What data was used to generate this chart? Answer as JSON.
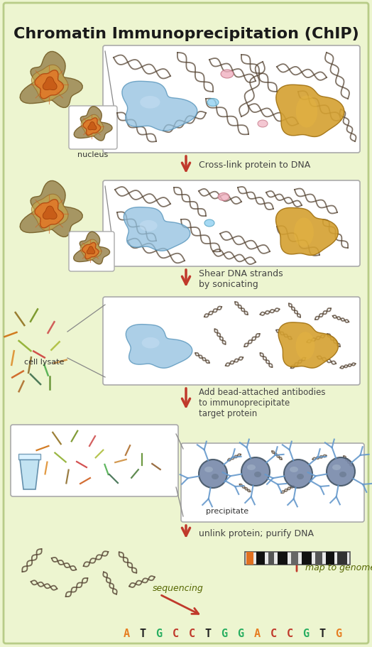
{
  "title": "Chromatin Immunoprecipitation (ChIP)",
  "background_color": "#edf5d0",
  "border_color": "#b8cc88",
  "title_color": "#1a1a1a",
  "title_fontsize": 16,
  "step_labels": [
    "Cross-link protein to DNA",
    "Shear DNA strands\nby sonicating",
    "Add bead-attached antibodies\nto immunoprecipitate\ntarget protein",
    "unlink protein; purify DNA"
  ],
  "step_label_color": "#444444",
  "arrow_color": "#c0392b",
  "nucleus_label": "nucleus",
  "cell_lysate_label": "cell lysate",
  "precipitate_label": "precipitate",
  "sequencing_label": "sequencing",
  "map_label": "map to genome",
  "dna_sequence": "ATGCCTGGACCGTG",
  "dna_colors": [
    "#e67e22",
    "#222222",
    "#27ae60",
    "#c0392b",
    "#c0392b",
    "#222222",
    "#27ae60",
    "#27ae60",
    "#e67e22",
    "#c0392b",
    "#c0392b",
    "#27ae60",
    "#222222",
    "#e67e22"
  ]
}
